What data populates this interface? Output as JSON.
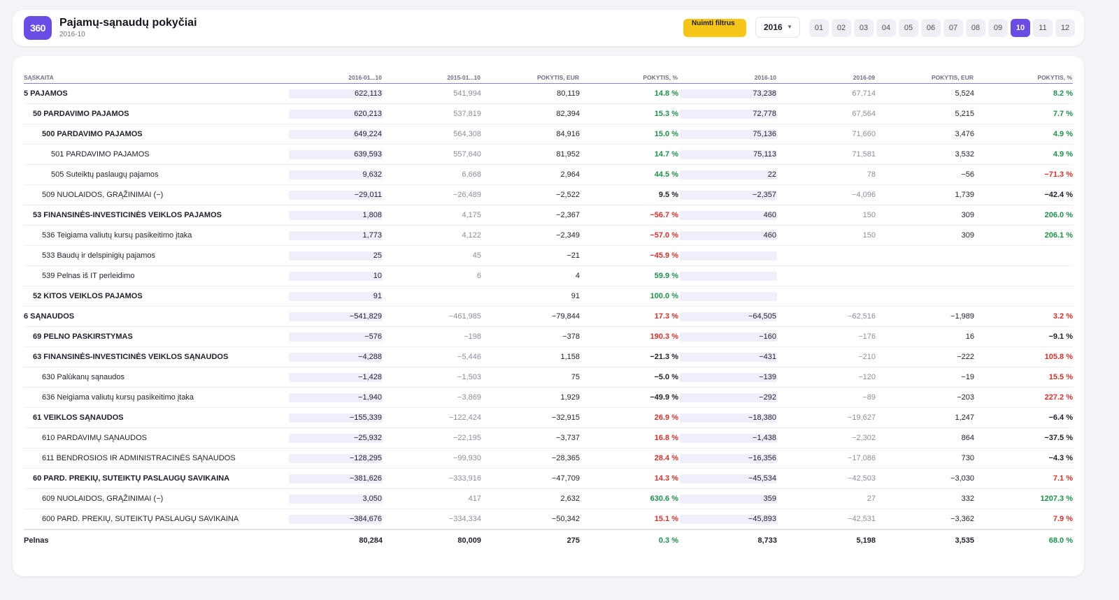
{
  "header": {
    "logo": "360",
    "title": "Pajamų-sąnaudų pokyčiai",
    "subtitle": "2016-10",
    "clear_filters_label": "Nuimti filtrus",
    "year": "2016",
    "months": [
      "01",
      "02",
      "03",
      "04",
      "05",
      "06",
      "07",
      "08",
      "09",
      "10",
      "11",
      "12"
    ],
    "active_month": "10"
  },
  "table": {
    "columns": [
      "SĄSKAITA",
      "2016-01...10",
      "2015-01...10",
      "POKYTIS, EUR",
      "POKYTIS, %",
      "2016-10",
      "2016-09",
      "POKYTIS, EUR",
      "POKYTIS, %"
    ],
    "rows": [
      {
        "name": "5 PAJAMOS",
        "level": 0,
        "c1": "622,113",
        "c2": "541,994",
        "c3": "80,119",
        "c4": "14.8 %",
        "c4s": "pos",
        "c5": "73,238",
        "c6": "67,714",
        "c7": "5,524",
        "c8": "8.2 %",
        "c8s": "pos"
      },
      {
        "name": "50 PARDAVIMO PAJAMOS",
        "level": 1,
        "c1": "620,213",
        "c2": "537,819",
        "c3": "82,394",
        "c4": "15.3 %",
        "c4s": "pos",
        "c5": "72,778",
        "c6": "67,564",
        "c7": "5,215",
        "c8": "7.7 %",
        "c8s": "pos"
      },
      {
        "name": "500 PARDAVIMO PAJAMOS",
        "level": 2,
        "bold": true,
        "c1": "649,224",
        "c2": "564,308",
        "c3": "84,916",
        "c4": "15.0 %",
        "c4s": "pos",
        "c5": "75,136",
        "c6": "71,660",
        "c7": "3,476",
        "c8": "4.9 %",
        "c8s": "pos"
      },
      {
        "name": "501 PARDAVIMO PAJAMOS",
        "level": 3,
        "c1": "639,593",
        "c2": "557,640",
        "c3": "81,952",
        "c4": "14.7 %",
        "c4s": "pos",
        "c5": "75,113",
        "c6": "71,581",
        "c7": "3,532",
        "c8": "4.9 %",
        "c8s": "pos"
      },
      {
        "name": "505 Suteiktų paslaugų pajamos",
        "level": 3,
        "c1": "9,632",
        "c2": "6,668",
        "c3": "2,964",
        "c4": "44.5 %",
        "c4s": "pos",
        "c5": "22",
        "c6": "78",
        "c7": "−56",
        "c8": "−71.3 %",
        "c8s": "neg"
      },
      {
        "name": "509 NUOLAIDOS, GRĄŽINIMAI (−)",
        "level": 2,
        "c1": "−29,011",
        "c2": "−26,489",
        "c3": "−2,522",
        "c4": "9.5 %",
        "c4s": "neu",
        "c5": "−2,357",
        "c6": "−4,096",
        "c7": "1,739",
        "c8": "−42.4 %",
        "c8s": "neu"
      },
      {
        "name": "53 FINANSINĖS-INVESTICINĖS VEIKLOS PAJAMOS",
        "level": 1,
        "c1": "1,808",
        "c2": "4,175",
        "c3": "−2,367",
        "c4": "−56.7 %",
        "c4s": "neg",
        "c5": "460",
        "c6": "150",
        "c7": "309",
        "c8": "206.0 %",
        "c8s": "pos"
      },
      {
        "name": "536 Teigiama valiutų kursų pasikeitimo įtaka",
        "level": 2,
        "c1": "1,773",
        "c2": "4,122",
        "c3": "−2,349",
        "c4": "−57.0 %",
        "c4s": "neg",
        "c5": "460",
        "c6": "150",
        "c7": "309",
        "c8": "206.1 %",
        "c8s": "pos"
      },
      {
        "name": "533 Baudų ir delspinigių pajamos",
        "level": 2,
        "c1": "25",
        "c2": "45",
        "c3": "−21",
        "c4": "−45.9 %",
        "c4s": "neg",
        "c5": "",
        "c6": "",
        "c7": "",
        "c8": "",
        "c8s": "neu"
      },
      {
        "name": "539 Pelnas iš IT perleidimo",
        "level": 2,
        "c1": "10",
        "c2": "6",
        "c3": "4",
        "c4": "59.9 %",
        "c4s": "pos",
        "c5": "",
        "c6": "",
        "c7": "",
        "c8": "",
        "c8s": "neu"
      },
      {
        "name": "52 KITOS VEIKLOS PAJAMOS",
        "level": 1,
        "c1": "91",
        "c2": "",
        "c3": "91",
        "c4": "100.0 %",
        "c4s": "pos",
        "c5": "",
        "c6": "",
        "c7": "",
        "c8": "",
        "c8s": "neu"
      },
      {
        "name": "6 SĄNAUDOS",
        "level": 0,
        "c1": "−541,829",
        "c2": "−461,985",
        "c3": "−79,844",
        "c4": "17.3 %",
        "c4s": "neg",
        "c5": "−64,505",
        "c6": "−62,516",
        "c7": "−1,989",
        "c8": "3.2 %",
        "c8s": "neg"
      },
      {
        "name": "69 PELNO PASKIRSTYMAS",
        "level": 1,
        "c1": "−576",
        "c2": "−198",
        "c3": "−378",
        "c4": "190.3 %",
        "c4s": "neg",
        "c5": "−160",
        "c6": "−176",
        "c7": "16",
        "c8": "−9.1 %",
        "c8s": "neu"
      },
      {
        "name": "63 FINANSINĖS-INVESTICINĖS VEIKLOS SĄNAUDOS",
        "level": 1,
        "c1": "−4,288",
        "c2": "−5,446",
        "c3": "1,158",
        "c4": "−21.3 %",
        "c4s": "neu",
        "c5": "−431",
        "c6": "−210",
        "c7": "−222",
        "c8": "105.8 %",
        "c8s": "neg"
      },
      {
        "name": "630 Palūkanų sąnaudos",
        "level": 2,
        "c1": "−1,428",
        "c2": "−1,503",
        "c3": "75",
        "c4": "−5.0 %",
        "c4s": "neu",
        "c5": "−139",
        "c6": "−120",
        "c7": "−19",
        "c8": "15.5 %",
        "c8s": "neg"
      },
      {
        "name": "636 Neigiama valiutų kursų pasikeitimo įtaka",
        "level": 2,
        "c1": "−1,940",
        "c2": "−3,869",
        "c3": "1,929",
        "c4": "−49.9 %",
        "c4s": "neu",
        "c5": "−292",
        "c6": "−89",
        "c7": "−203",
        "c8": "227.2 %",
        "c8s": "neg"
      },
      {
        "name": "61 VEIKLOS SĄNAUDOS",
        "level": 1,
        "c1": "−155,339",
        "c2": "−122,424",
        "c3": "−32,915",
        "c4": "26.9 %",
        "c4s": "neg",
        "c5": "−18,380",
        "c6": "−19,627",
        "c7": "1,247",
        "c8": "−6.4 %",
        "c8s": "neu"
      },
      {
        "name": "610 PARDAVIMŲ SĄNAUDOS",
        "level": 2,
        "c1": "−25,932",
        "c2": "−22,195",
        "c3": "−3,737",
        "c4": "16.8 %",
        "c4s": "neg",
        "c5": "−1,438",
        "c6": "−2,302",
        "c7": "864",
        "c8": "−37.5 %",
        "c8s": "neu"
      },
      {
        "name": "611 BENDROSIOS IR ADMINISTRACINĖS SĄNAUDOS",
        "level": 2,
        "c1": "−128,295",
        "c2": "−99,930",
        "c3": "−28,365",
        "c4": "28.4 %",
        "c4s": "neg",
        "c5": "−16,356",
        "c6": "−17,086",
        "c7": "730",
        "c8": "−4.3 %",
        "c8s": "neu"
      },
      {
        "name": "60 PARD. PREKIŲ, SUTEIKTŲ PASLAUGŲ SAVIKAINA",
        "level": 1,
        "c1": "−381,626",
        "c2": "−333,916",
        "c3": "−47,709",
        "c4": "14.3 %",
        "c4s": "neg",
        "c5": "−45,534",
        "c6": "−42,503",
        "c7": "−3,030",
        "c8": "7.1 %",
        "c8s": "neg"
      },
      {
        "name": "609 NUOLAIDOS, GRĄŽINIMAI (−)",
        "level": 2,
        "c1": "3,050",
        "c2": "417",
        "c3": "2,632",
        "c4": "630.6 %",
        "c4s": "pos",
        "c5": "359",
        "c6": "27",
        "c7": "332",
        "c8": "1207.3 %",
        "c8s": "pos"
      },
      {
        "name": "600 PARD. PREKIŲ, SUTEIKTŲ PASLAUGŲ SAVIKAINA",
        "level": 2,
        "c1": "−384,676",
        "c2": "−334,334",
        "c3": "−50,342",
        "c4": "15.1 %",
        "c4s": "neg",
        "c5": "−45,893",
        "c6": "−42,531",
        "c7": "−3,362",
        "c8": "7.9 %",
        "c8s": "neg"
      }
    ],
    "total": {
      "name": "Pelnas",
      "c1": "80,284",
      "c2": "80,009",
      "c3": "275",
      "c4": "0.3 %",
      "c4s": "pos",
      "c5": "8,733",
      "c6": "5,198",
      "c7": "3,535",
      "c8": "68.0 %",
      "c8s": "pos"
    }
  },
  "colors": {
    "accent": "#6b4de6",
    "filter_button": "#f5c518",
    "positive": "#1f8f4b",
    "negative": "#d0322c"
  }
}
